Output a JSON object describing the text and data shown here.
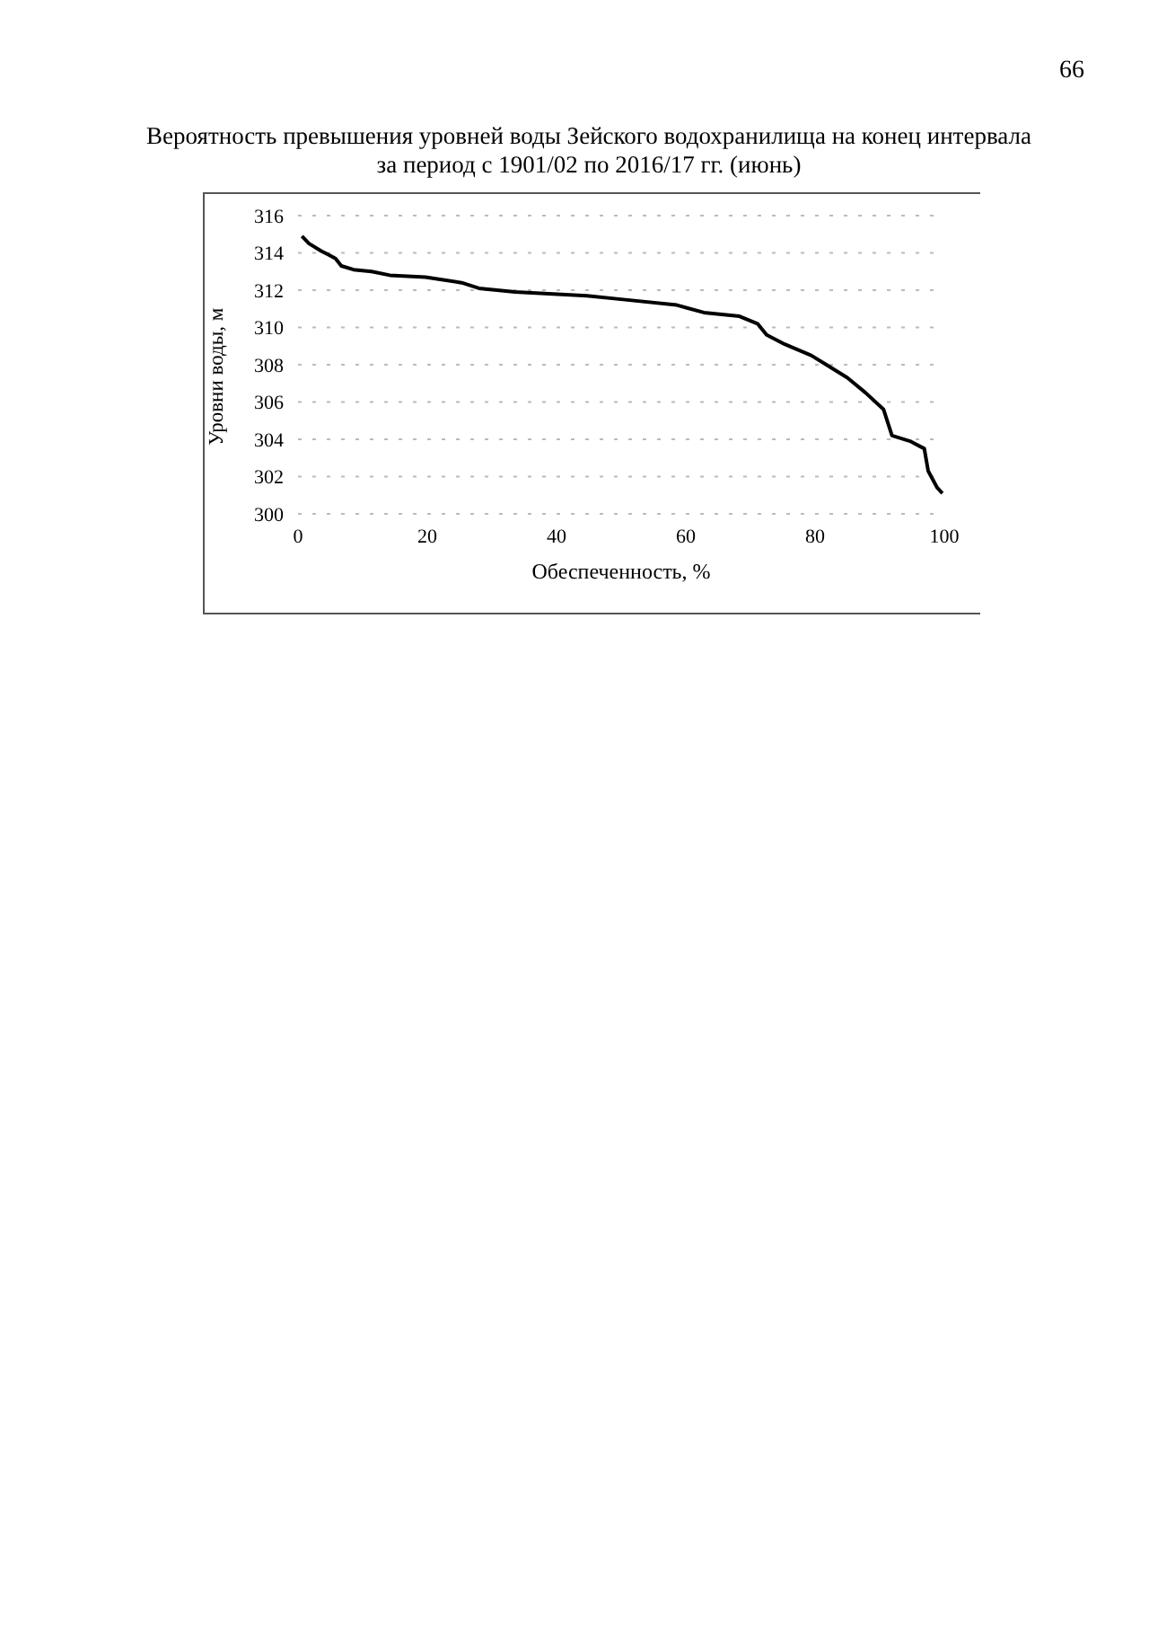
{
  "chart_data": {
    "type": "line",
    "title": "Вероятность превышения уровней воды Зейского водохранилища на конец интервала\nза период с 1901/02 по 2016/17 гг. (июнь)",
    "xlabel": "Обеспеченность, %",
    "ylabel": "Уровни воды, м",
    "annotations": [
      "66"
    ],
    "x": [
      0.6,
      1.7,
      3.6,
      4.7,
      5.8,
      6.7,
      8.6,
      11.4,
      14.2,
      19.7,
      25.3,
      28,
      33.6,
      44.7,
      50.3,
      58.6,
      62.8,
      68.3,
      71.1,
      72.5,
      75.3,
      79.4,
      82.2,
      85,
      87.8,
      90.6,
      91.9,
      94.7,
      96.9,
      97.5,
      98.9,
      99.7
    ],
    "series": [
      {
        "color": "#000000",
        "values": [
          314.9,
          314.5,
          314.1,
          313.9,
          313.7,
          313.3,
          313.1,
          313.0,
          312.8,
          312.7,
          312.4,
          312.1,
          311.9,
          311.7,
          311.5,
          311.2,
          310.8,
          310.6,
          310.2,
          309.6,
          309.1,
          308.5,
          307.9,
          307.3,
          306.5,
          305.6,
          304.2,
          303.9,
          303.5,
          302.3,
          301.4,
          301.1
        ]
      }
    ],
    "xlim": [
      0,
      100
    ],
    "xticks": [
      0,
      20,
      40,
      60,
      80,
      100
    ],
    "ylim": [
      300,
      316
    ],
    "yticks": [
      300,
      302,
      304,
      306,
      308,
      310,
      312,
      314,
      316
    ],
    "grid": "y",
    "legend": false,
    "marker": "none",
    "line_style": "solid"
  }
}
